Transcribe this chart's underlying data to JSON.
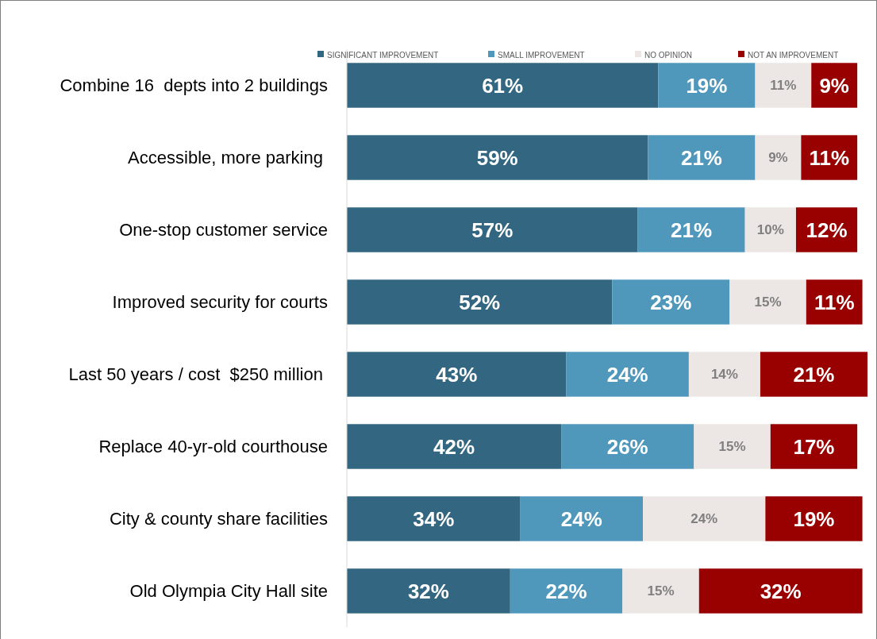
{
  "chart_data": {
    "type": "bar",
    "orientation": "horizontal",
    "stacked": true,
    "legend": "top",
    "categories": [
      "Combine 16  depts into 2 buildings",
      "Accessible, more parking ",
      "One-stop customer service",
      "Improved security for courts",
      "Last 50 years / cost  $250 million ",
      "Replace 40-yr-old courthouse",
      "City & county share facilities",
      "Old Olympia City Hall site"
    ],
    "series": [
      {
        "name": "SIGNIFICANT IMPROVEMENT",
        "color": "#336680",
        "values": [
          61,
          59,
          57,
          52,
          43,
          42,
          34,
          32
        ],
        "value_labels": [
          "61%",
          "59%",
          "57%",
          "52%",
          "43%",
          "42%",
          "34%",
          "32%"
        ]
      },
      {
        "name": "SMALL IMPROVEMENT",
        "color": "#4f97bb",
        "values": [
          19,
          21,
          21,
          23,
          24,
          26,
          24,
          22
        ],
        "value_labels": [
          "19%",
          "21%",
          "21%",
          "23%",
          "24%",
          "26%",
          "24%",
          "22%"
        ]
      },
      {
        "name": "NO OPINION",
        "color": "#ece6e4",
        "values": [
          11,
          9,
          10,
          15,
          14,
          15,
          24,
          15
        ],
        "value_labels": [
          "11%",
          "9%",
          "10%",
          "15%",
          "14%",
          "15%",
          "24%",
          "15%"
        ]
      },
      {
        "name": "NOT AN IMPROVEMENT",
        "color": "#990000",
        "values": [
          9,
          11,
          12,
          11,
          21,
          17,
          19,
          32
        ],
        "value_labels": [
          "9%",
          "11%",
          "12%",
          "11%",
          "21%",
          "17%",
          "19%",
          "32%"
        ]
      }
    ]
  }
}
